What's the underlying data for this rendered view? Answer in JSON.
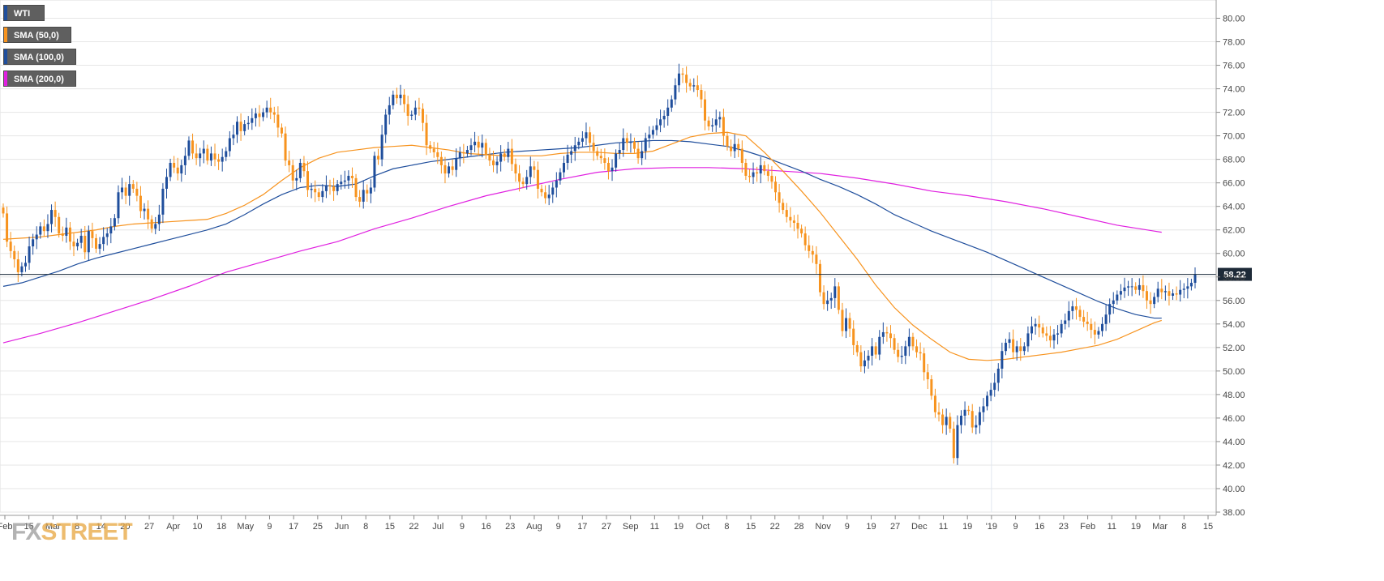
{
  "logo": {
    "fx": "FX",
    "street": "STREET"
  },
  "legend": [
    {
      "label": "WTI",
      "color": "#1f4e9c"
    },
    {
      "label": "SMA (50,0)",
      "color": "#f7931e"
    },
    {
      "label": "SMA (100,0)",
      "color": "#1f4e9c"
    },
    {
      "label": "SMA (200,0)",
      "color": "#e020e0"
    }
  ],
  "colors": {
    "up": "#1f4e9c",
    "down": "#f7931e",
    "sma50": "#f7931e",
    "sma100": "#1f4e9c",
    "sma200": "#e020e0",
    "grid": "#e6e6e6",
    "price_line": "#1a2a3a"
  },
  "chart_data": {
    "type": "candlestick",
    "title": "",
    "ylim": [
      38,
      81
    ],
    "grid": true,
    "legend_position": "top-left",
    "y_ticks": [
      "38.00",
      "40.00",
      "42.00",
      "44.00",
      "46.00",
      "48.00",
      "50.00",
      "52.00",
      "54.00",
      "56.00",
      "58.00",
      "60.00",
      "62.00",
      "64.00",
      "66.00",
      "68.00",
      "70.00",
      "72.00",
      "74.00",
      "76.00",
      "78.00",
      "80.00"
    ],
    "x_ticks": [
      "Feb",
      "15",
      "Mar",
      "8",
      "14",
      "20",
      "27",
      "Apr",
      "10",
      "18",
      "May",
      "9",
      "17",
      "25",
      "Jun",
      "8",
      "15",
      "22",
      "Jul",
      "9",
      "16",
      "23",
      "Aug",
      "9",
      "17",
      "27",
      "Sep",
      "11",
      "19",
      "Oct",
      "8",
      "15",
      "22",
      "28",
      "Nov",
      "9",
      "19",
      "27",
      "Dec",
      "11",
      "19",
      "'19",
      "9",
      "16",
      "23",
      "Feb",
      "11",
      "19",
      "Mar",
      "8",
      "15"
    ],
    "last_price": "58.22",
    "series": [
      {
        "name": "WTI",
        "kind": "ohlc",
        "close": [
          63.4,
          61.0,
          60.2,
          59.5,
          58.4,
          58.9,
          59.2,
          60.6,
          61.2,
          61.6,
          62.3,
          61.9,
          62.5,
          63.7,
          63.1,
          61.7,
          61.5,
          62.2,
          61.0,
          60.6,
          60.9,
          61.5,
          60.1,
          61.9,
          61.3,
          60.4,
          60.8,
          61.4,
          61.7,
          62.3,
          63.0,
          65.2,
          65.6,
          64.9,
          65.9,
          65.5,
          64.9,
          63.6,
          63.8,
          62.9,
          62.1,
          62.5,
          63.3,
          65.5,
          66.5,
          67.7,
          67.3,
          66.8,
          67.5,
          68.3,
          69.6,
          68.5,
          68.1,
          68.5,
          68.9,
          67.9,
          68.5,
          68.0,
          67.8,
          68.2,
          68.7,
          69.8,
          70.1,
          71.2,
          70.4,
          71.0,
          71.1,
          71.5,
          71.9,
          71.6,
          72.0,
          72.4,
          72.0,
          71.8,
          70.7,
          70.2,
          67.9,
          67.5,
          66.2,
          66.4,
          67.7,
          67.0,
          65.4,
          65.5,
          65.2,
          64.8,
          65.3,
          65.8,
          65.7,
          65.3,
          65.9,
          66.1,
          66.2,
          66.6,
          66.4,
          64.8,
          64.4,
          65.4,
          65.1,
          65.6,
          68.3,
          68.0,
          70.1,
          71.8,
          72.6,
          73.5,
          73.2,
          73.5,
          72.7,
          71.7,
          71.8,
          72.4,
          72.3,
          71.1,
          69.2,
          68.9,
          68.6,
          68.2,
          67.5,
          66.8,
          67.4,
          67.1,
          68.1,
          68.6,
          68.5,
          68.8,
          69.2,
          69.5,
          69.0,
          69.4,
          68.4,
          67.9,
          67.5,
          67.8,
          68.5,
          68.2,
          68.9,
          67.6,
          66.8,
          66.1,
          65.9,
          66.5,
          67.4,
          67.1,
          65.5,
          65.2,
          64.7,
          65.0,
          65.6,
          66.2,
          66.9,
          67.7,
          68.4,
          68.7,
          69.2,
          69.5,
          69.8,
          70.3,
          69.4,
          68.7,
          68.3,
          68.1,
          67.7,
          67.0,
          67.3,
          68.5,
          68.8,
          69.8,
          69.4,
          69.5,
          68.9,
          68.1,
          68.7,
          69.8,
          70.1,
          70.5,
          70.9,
          71.4,
          71.7,
          72.4,
          73.1,
          74.3,
          75.3,
          75.2,
          74.5,
          74.2,
          74.3,
          73.9,
          73.1,
          71.3,
          70.8,
          70.9,
          71.4,
          71.6,
          70.0,
          69.1,
          68.7,
          69.3,
          68.9,
          67.7,
          66.6,
          66.5,
          66.9,
          66.8,
          67.5,
          67.0,
          66.6,
          66.1,
          65.2,
          64.3,
          63.7,
          63.1,
          62.8,
          62.6,
          62.1,
          61.7,
          60.7,
          60.2,
          59.9,
          59.1,
          56.7,
          55.7,
          56.0,
          56.2,
          57.2,
          55.2,
          53.4,
          54.5,
          53.6,
          52.2,
          51.6,
          50.4,
          50.9,
          51.3,
          52.1,
          51.4,
          52.9,
          53.3,
          53.2,
          52.8,
          51.8,
          51.2,
          51.3,
          52.1,
          52.9,
          52.1,
          51.6,
          51.5,
          49.9,
          49.3,
          47.9,
          46.5,
          46.3,
          45.4,
          46.1,
          45.1,
          42.6,
          45.4,
          46.2,
          46.7,
          46.6,
          45.2,
          45.4,
          46.5,
          47.0,
          47.9,
          48.4,
          49.0,
          50.2,
          51.7,
          52.4,
          52.7,
          51.6,
          52.1,
          51.7,
          52.1,
          53.2,
          53.8,
          54.0,
          53.7,
          53.2,
          53.0,
          52.6,
          53.1,
          53.2,
          54.0,
          54.3,
          55.1,
          55.5,
          55.2,
          54.6,
          54.2,
          54.0,
          53.5,
          53.1,
          53.4,
          54.0,
          54.8,
          55.7,
          56.0,
          56.5,
          56.8,
          57.1,
          57.2,
          57.2,
          56.9,
          57.3,
          56.8,
          56.0,
          55.7,
          56.3,
          57.0,
          56.7,
          56.8,
          56.4,
          56.6,
          56.5,
          56.9,
          57.0,
          57.2,
          57.5,
          58.22
        ]
      },
      {
        "name": "SMA (50,0)",
        "kind": "line",
        "x": [
          0,
          5,
          10,
          15,
          20,
          25,
          30,
          35,
          40,
          45,
          50,
          55,
          60,
          65,
          70,
          75,
          80,
          85,
          90,
          95,
          100,
          105,
          110,
          115,
          120,
          125,
          130,
          135,
          140,
          145,
          150,
          155,
          160,
          165,
          170,
          175,
          180,
          185,
          190,
          195,
          200,
          205,
          210,
          215,
          220,
          225,
          230,
          235,
          240,
          245,
          250,
          255,
          260,
          265,
          270,
          275,
          280,
          285,
          290,
          295,
          300,
          305,
          310,
          312
        ],
        "values": [
          61.2,
          61.3,
          61.4,
          61.6,
          61.8,
          62.0,
          62.3,
          62.5,
          62.6,
          62.7,
          62.8,
          62.9,
          63.4,
          64.1,
          65.0,
          66.2,
          67.3,
          68.1,
          68.6,
          68.8,
          69.0,
          69.1,
          69.2,
          69.0,
          68.8,
          68.5,
          68.4,
          68.3,
          68.3,
          68.3,
          68.5,
          68.6,
          68.6,
          68.5,
          68.5,
          68.7,
          69.3,
          69.9,
          70.2,
          70.3,
          70.0,
          68.6,
          67.0,
          65.3,
          63.5,
          61.5,
          59.5,
          57.3,
          55.4,
          53.9,
          52.7,
          51.6,
          51.0,
          50.9,
          51.0,
          51.2,
          51.4,
          51.6,
          51.9,
          52.2,
          52.7,
          53.4,
          54.1,
          54.3
        ]
      },
      {
        "name": "SMA (100,0)",
        "kind": "line",
        "x": [
          0,
          5,
          10,
          15,
          20,
          25,
          30,
          35,
          40,
          45,
          50,
          55,
          60,
          65,
          70,
          75,
          80,
          85,
          90,
          95,
          100,
          105,
          110,
          115,
          120,
          125,
          130,
          135,
          140,
          145,
          150,
          155,
          160,
          165,
          170,
          175,
          180,
          185,
          190,
          195,
          200,
          205,
          210,
          215,
          220,
          225,
          230,
          235,
          240,
          245,
          250,
          255,
          260,
          265,
          270,
          275,
          280,
          285,
          290,
          295,
          300,
          305,
          310,
          312
        ],
        "values": [
          57.2,
          57.5,
          58.0,
          58.5,
          59.1,
          59.6,
          60.0,
          60.4,
          60.8,
          61.2,
          61.6,
          62.0,
          62.5,
          63.3,
          64.2,
          65.0,
          65.6,
          65.8,
          65.7,
          65.9,
          66.6,
          67.2,
          67.5,
          67.8,
          68.0,
          68.2,
          68.4,
          68.6,
          68.7,
          68.8,
          68.9,
          69.0,
          69.2,
          69.4,
          69.5,
          69.6,
          69.6,
          69.5,
          69.3,
          69.1,
          68.7,
          68.2,
          67.6,
          67.0,
          66.3,
          65.7,
          65.0,
          64.2,
          63.3,
          62.6,
          61.9,
          61.3,
          60.7,
          60.1,
          59.4,
          58.7,
          58.0,
          57.3,
          56.6,
          55.9,
          55.3,
          54.8,
          54.5,
          54.5
        ]
      },
      {
        "name": "SMA (200,0)",
        "kind": "line",
        "x": [
          0,
          10,
          20,
          30,
          40,
          50,
          60,
          70,
          80,
          90,
          100,
          110,
          120,
          130,
          140,
          150,
          160,
          170,
          180,
          190,
          200,
          210,
          220,
          230,
          240,
          250,
          260,
          270,
          280,
          290,
          300,
          310,
          312
        ],
        "values": [
          52.4,
          53.2,
          54.1,
          55.1,
          56.1,
          57.2,
          58.4,
          59.3,
          60.2,
          61.0,
          62.1,
          63.0,
          64.0,
          64.9,
          65.6,
          66.3,
          66.9,
          67.2,
          67.3,
          67.3,
          67.2,
          67.0,
          66.8,
          66.4,
          65.9,
          65.3,
          64.9,
          64.4,
          63.8,
          63.1,
          62.4,
          61.9,
          61.8
        ]
      }
    ]
  }
}
